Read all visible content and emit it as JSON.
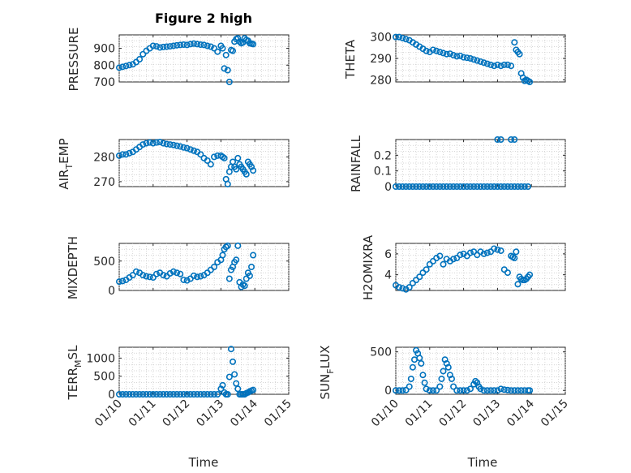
{
  "accent_color": "#0072BD",
  "chart_data": [
    {
      "type": "scatter",
      "title": "Figure 2 high",
      "ylabel": "PRESSURE",
      "xlim": [
        0,
        5
      ],
      "ylim": [
        700,
        980
      ],
      "yticks": [
        700,
        800,
        900
      ],
      "x": [
        0.0,
        0.1,
        0.2,
        0.3,
        0.4,
        0.5,
        0.6,
        0.7,
        0.8,
        0.9,
        1.0,
        1.1,
        1.2,
        1.3,
        1.4,
        1.5,
        1.6,
        1.7,
        1.8,
        1.9,
        2.0,
        2.1,
        2.2,
        2.3,
        2.4,
        2.5,
        2.6,
        2.7,
        2.8,
        2.9,
        3.0,
        3.05,
        3.1,
        3.15,
        3.2,
        3.25,
        3.3,
        3.35,
        3.4,
        3.45,
        3.5,
        3.55,
        3.6,
        3.65,
        3.7,
        3.75,
        3.8,
        3.85,
        3.9,
        3.95
      ],
      "y": [
        785,
        790,
        795,
        800,
        805,
        818,
        835,
        865,
        885,
        900,
        915,
        912,
        905,
        908,
        910,
        912,
        915,
        918,
        920,
        922,
        920,
        925,
        928,
        925,
        922,
        920,
        915,
        910,
        900,
        880,
        915,
        900,
        780,
        860,
        770,
        700,
        890,
        885,
        940,
        955,
        960,
        940,
        930,
        935,
        960,
        950,
        945,
        930,
        928,
        925
      ]
    },
    {
      "type": "scatter",
      "title": "",
      "ylabel": "THETA",
      "xlim": [
        0,
        5
      ],
      "ylim": [
        279,
        301
      ],
      "yticks": [
        280,
        290,
        300
      ],
      "x": [
        0.0,
        0.1,
        0.2,
        0.3,
        0.4,
        0.5,
        0.6,
        0.7,
        0.8,
        0.9,
        1.0,
        1.1,
        1.2,
        1.3,
        1.4,
        1.5,
        1.6,
        1.7,
        1.8,
        1.9,
        2.0,
        2.1,
        2.2,
        2.3,
        2.4,
        2.5,
        2.6,
        2.7,
        2.8,
        2.9,
        3.0,
        3.1,
        3.2,
        3.3,
        3.4,
        3.5,
        3.55,
        3.6,
        3.65,
        3.7,
        3.75,
        3.8,
        3.85,
        3.9,
        3.95
      ],
      "y": [
        300,
        300,
        299.5,
        299,
        298.5,
        297.5,
        296.5,
        295.5,
        294.5,
        293.5,
        293,
        294,
        293.5,
        293,
        292.5,
        292,
        292.2,
        291.5,
        291,
        291.2,
        290.5,
        290.3,
        290,
        289.5,
        289,
        288.5,
        288,
        287.5,
        287,
        286.5,
        287,
        286.5,
        287,
        287,
        286.5,
        297.5,
        294,
        293,
        292,
        283,
        281,
        279.5,
        280,
        279.5,
        279
      ]
    },
    {
      "type": "scatter",
      "title": "",
      "ylabel": "AIR_TEMP",
      "xlim": [
        0,
        5
      ],
      "ylim": [
        268,
        287
      ],
      "yticks": [
        270,
        280
      ],
      "x": [
        0.0,
        0.1,
        0.2,
        0.3,
        0.4,
        0.5,
        0.6,
        0.7,
        0.8,
        0.9,
        1.0,
        1.1,
        1.2,
        1.3,
        1.4,
        1.5,
        1.6,
        1.7,
        1.8,
        1.9,
        2.0,
        2.1,
        2.2,
        2.3,
        2.4,
        2.5,
        2.6,
        2.7,
        2.8,
        2.9,
        3.0,
        3.05,
        3.1,
        3.15,
        3.2,
        3.25,
        3.3,
        3.35,
        3.4,
        3.45,
        3.5,
        3.55,
        3.6,
        3.65,
        3.7,
        3.75,
        3.8,
        3.85,
        3.9,
        3.95
      ],
      "y": [
        280.5,
        281,
        281,
        281.5,
        282,
        283,
        284,
        285,
        285.5,
        285.8,
        285.5,
        285.8,
        286,
        285.5,
        285.2,
        285,
        284.8,
        284.5,
        284.2,
        283.8,
        283.5,
        283,
        282.5,
        282,
        281,
        279.5,
        278.5,
        277,
        280,
        280.5,
        280.5,
        280,
        279.5,
        271,
        269,
        274,
        276,
        278,
        276,
        275,
        279.5,
        277,
        276,
        275,
        274,
        273,
        278,
        277,
        276,
        274.5
      ]
    },
    {
      "type": "scatter",
      "title": "",
      "ylabel": "RAINFALL",
      "xlim": [
        0,
        5
      ],
      "ylim": [
        0,
        0.3
      ],
      "yticks": [
        0,
        0.1,
        0.2
      ],
      "x": [
        0.0,
        0.1,
        0.2,
        0.3,
        0.4,
        0.5,
        0.6,
        0.7,
        0.8,
        0.9,
        1.0,
        1.1,
        1.2,
        1.3,
        1.4,
        1.5,
        1.6,
        1.7,
        1.8,
        1.9,
        2.0,
        2.1,
        2.2,
        2.3,
        2.4,
        2.5,
        2.6,
        2.7,
        2.8,
        2.9,
        3.0,
        3.1,
        3.2,
        3.3,
        3.4,
        3.5,
        3.6,
        3.7,
        3.8,
        3.9,
        3.0,
        3.1,
        3.4,
        3.5
      ],
      "y": [
        0,
        0,
        0,
        0,
        0,
        0,
        0,
        0,
        0,
        0,
        0,
        0,
        0,
        0,
        0,
        0,
        0,
        0,
        0,
        0,
        0,
        0,
        0,
        0,
        0,
        0,
        0,
        0,
        0,
        0,
        0,
        0,
        0,
        0,
        0,
        0,
        0,
        0,
        0,
        0,
        0.3,
        0.3,
        0.3,
        0.3
      ]
    },
    {
      "type": "scatter",
      "title": "",
      "ylabel": "MIXDEPTH",
      "xlim": [
        0,
        5
      ],
      "ylim": [
        0,
        800
      ],
      "yticks": [
        0,
        500
      ],
      "x": [
        0.0,
        0.1,
        0.2,
        0.3,
        0.4,
        0.5,
        0.6,
        0.7,
        0.8,
        0.9,
        1.0,
        1.1,
        1.2,
        1.3,
        1.4,
        1.5,
        1.6,
        1.7,
        1.8,
        1.9,
        2.0,
        2.1,
        2.2,
        2.3,
        2.4,
        2.5,
        2.6,
        2.7,
        2.8,
        2.9,
        3.0,
        3.05,
        3.1,
        3.15,
        3.2,
        3.25,
        3.3,
        3.35,
        3.4,
        3.45,
        3.5,
        3.55,
        3.6,
        3.65,
        3.7,
        3.75,
        3.8,
        3.85,
        3.9,
        3.95
      ],
      "y": [
        150,
        160,
        180,
        220,
        260,
        320,
        300,
        260,
        240,
        230,
        220,
        280,
        300,
        260,
        240,
        290,
        320,
        300,
        280,
        180,
        170,
        200,
        250,
        230,
        240,
        260,
        300,
        350,
        400,
        480,
        520,
        600,
        700,
        740,
        760,
        200,
        350,
        400,
        480,
        520,
        760,
        140,
        60,
        100,
        80,
        200,
        300,
        250,
        400,
        600
      ]
    },
    {
      "type": "scatter",
      "title": "",
      "ylabel": "H2OMIXRA",
      "xlim": [
        0,
        5
      ],
      "ylim": [
        2.5,
        7
      ],
      "yticks": [
        4,
        6
      ],
      "x": [
        0.0,
        0.1,
        0.2,
        0.3,
        0.4,
        0.5,
        0.6,
        0.7,
        0.8,
        0.9,
        1.0,
        1.1,
        1.2,
        1.3,
        1.4,
        1.5,
        1.6,
        1.7,
        1.8,
        1.9,
        2.0,
        2.1,
        2.2,
        2.3,
        2.4,
        2.5,
        2.6,
        2.7,
        2.8,
        2.9,
        3.0,
        3.1,
        3.2,
        3.3,
        3.4,
        3.45,
        3.5,
        3.55,
        3.6,
        3.65,
        3.7,
        3.75,
        3.8,
        3.85,
        3.9,
        3.95
      ],
      "y": [
        3,
        2.8,
        2.7,
        2.6,
        2.8,
        3.2,
        3.5,
        3.8,
        4.2,
        4.5,
        5,
        5.3,
        5.6,
        5.8,
        5,
        5.5,
        5.3,
        5.5,
        5.6,
        5.9,
        6,
        5.8,
        6.1,
        6.2,
        5.9,
        6.2,
        6,
        6.1,
        6.2,
        6.5,
        6.4,
        6.3,
        4.5,
        4.2,
        5.8,
        5.7,
        5.6,
        6.2,
        3.1,
        3.8,
        3.6,
        3.5,
        3.5,
        3.6,
        3.8,
        4
      ]
    },
    {
      "type": "scatter",
      "title": "",
      "ylabel": "TERR_MSL",
      "xlim": [
        0,
        5
      ],
      "ylim": [
        0,
        1300
      ],
      "yticks": [
        0,
        500,
        1000
      ],
      "x": [
        0.0,
        0.1,
        0.2,
        0.3,
        0.4,
        0.5,
        0.6,
        0.7,
        0.8,
        0.9,
        1.0,
        1.1,
        1.2,
        1.3,
        1.4,
        1.5,
        1.6,
        1.7,
        1.8,
        1.9,
        2.0,
        2.1,
        2.2,
        2.3,
        2.4,
        2.5,
        2.6,
        2.7,
        2.8,
        2.9,
        3.0,
        3.05,
        3.1,
        3.15,
        3.2,
        3.25,
        3.3,
        3.35,
        3.4,
        3.45,
        3.5,
        3.55,
        3.6,
        3.65,
        3.7,
        3.75,
        3.8,
        3.85,
        3.9,
        3.95
      ],
      "y": [
        0,
        0,
        0,
        0,
        0,
        0,
        0,
        0,
        0,
        0,
        0,
        0,
        0,
        0,
        0,
        0,
        0,
        0,
        0,
        0,
        0,
        0,
        0,
        0,
        0,
        0,
        0,
        0,
        0,
        0,
        150,
        250,
        50,
        0,
        0,
        480,
        1250,
        900,
        550,
        300,
        150,
        0,
        0,
        0,
        0,
        30,
        50,
        80,
        100,
        120
      ]
    },
    {
      "type": "scatter",
      "title": "",
      "ylabel": "SUN_FLUX",
      "xlim": [
        0,
        5
      ],
      "ylim": [
        -50,
        560
      ],
      "yticks": [
        0,
        500
      ],
      "x": [
        0.0,
        0.1,
        0.2,
        0.3,
        0.4,
        0.45,
        0.5,
        0.55,
        0.6,
        0.65,
        0.7,
        0.75,
        0.8,
        0.85,
        0.9,
        1.0,
        1.1,
        1.2,
        1.3,
        1.35,
        1.4,
        1.45,
        1.5,
        1.55,
        1.6,
        1.65,
        1.7,
        1.8,
        1.9,
        2.0,
        2.1,
        2.2,
        2.3,
        2.35,
        2.4,
        2.45,
        2.5,
        2.6,
        2.7,
        2.8,
        2.9,
        3.0,
        3.1,
        3.2,
        3.3,
        3.4,
        3.5,
        3.6,
        3.7,
        3.8,
        3.9,
        3.95
      ],
      "y": [
        0,
        0,
        0,
        5,
        50,
        150,
        300,
        400,
        520,
        480,
        420,
        350,
        200,
        100,
        20,
        0,
        0,
        0,
        50,
        150,
        250,
        400,
        350,
        300,
        200,
        150,
        50,
        0,
        0,
        0,
        0,
        20,
        80,
        120,
        100,
        50,
        20,
        0,
        0,
        0,
        0,
        0,
        20,
        10,
        5,
        0,
        0,
        0,
        0,
        0,
        0,
        0
      ]
    }
  ],
  "x_axis": {
    "ticks": [
      0,
      1,
      2,
      3,
      4,
      5
    ],
    "tick_labels": [
      "01/10",
      "01/11",
      "01/12",
      "01/13",
      "01/14",
      "01/15"
    ],
    "xlabel": "Time"
  },
  "labels": {
    "fig_title": "Figure 2 high",
    "y1": "PRESSURE",
    "y2": "THETA",
    "y3_main": "AIR",
    "y3_sub": "T",
    "y3_rest": "EMP",
    "y4": "RAINFALL",
    "y5": "MIXDEPTH",
    "y6": "H2OMIXRA",
    "y7_main": "TERR",
    "y7_sub": "M",
    "y7_rest": "SL",
    "y8_main": "SUN",
    "y8_sub": "F",
    "y8_rest": "LUX",
    "xlabel_left": "Time",
    "xlabel_right": "Time"
  }
}
